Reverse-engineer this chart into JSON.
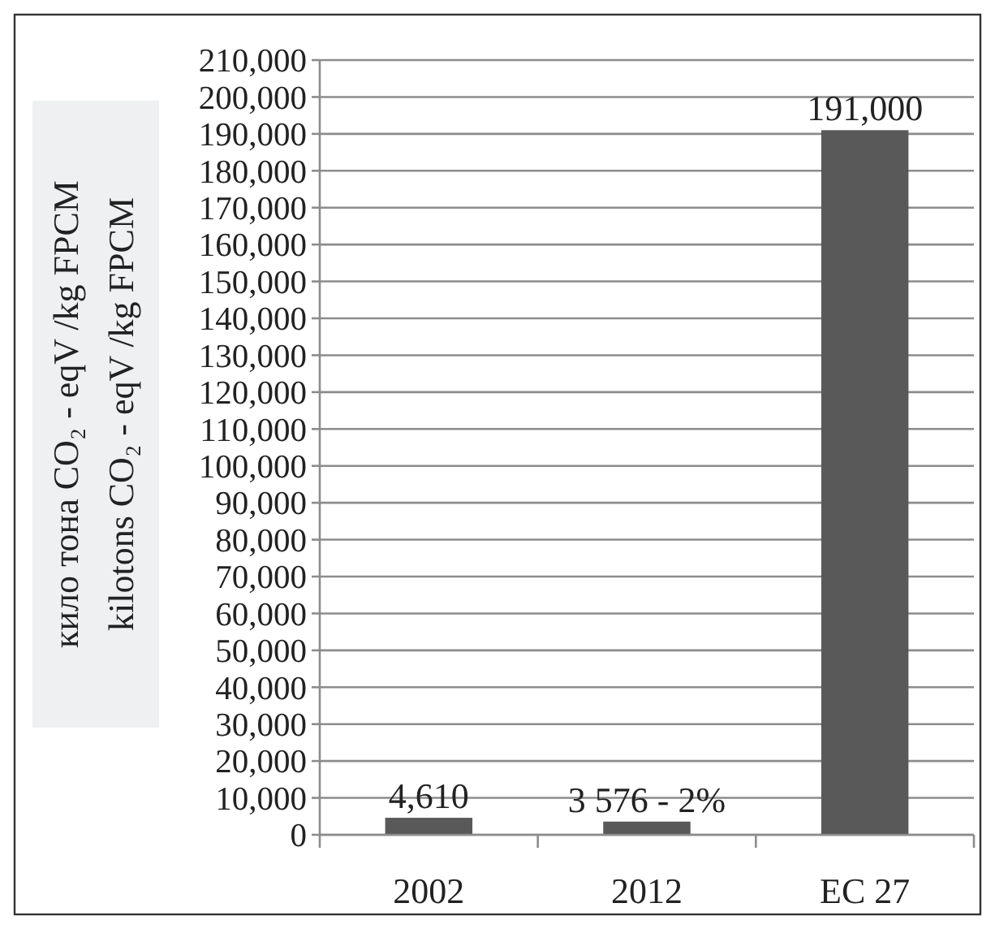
{
  "chart_data": {
    "type": "bar",
    "ylabel": "кило тона  CO₂ - eqV /kg FPCM\nkilotons  CO₂ - eqV /kg FPCM",
    "categories": [
      "2002",
      "2012",
      "EC 27"
    ],
    "values": [
      4610,
      3576,
      191000
    ],
    "value_labels": [
      "4,610",
      "3 576 - 2%",
      "191,000"
    ],
    "color": "#595959",
    "ylim": [
      0,
      210000
    ],
    "yticks": [
      {
        "value": 0,
        "label": "0"
      },
      {
        "value": 10000,
        "label": "10,000"
      },
      {
        "value": 20000,
        "label": "20,000"
      },
      {
        "value": 30000,
        "label": "30,000"
      },
      {
        "value": 40000,
        "label": "40,000"
      },
      {
        "value": 50000,
        "label": "50,000"
      },
      {
        "value": 60000,
        "label": "60,000"
      },
      {
        "value": 70000,
        "label": "70,000"
      },
      {
        "value": 80000,
        "label": "80,000"
      },
      {
        "value": 90000,
        "label": "90,000"
      },
      {
        "value": 100000,
        "label": "100,000"
      },
      {
        "value": 110000,
        "label": "110,000"
      },
      {
        "value": 120000,
        "label": "120,000"
      },
      {
        "value": 130000,
        "label": "130,000"
      },
      {
        "value": 140000,
        "label": "140,000"
      },
      {
        "value": 150000,
        "label": "150,000"
      },
      {
        "value": 160000,
        "label": "160,000"
      },
      {
        "value": 170000,
        "label": "170,000"
      },
      {
        "value": 180000,
        "label": "180,000"
      },
      {
        "value": 190000,
        "label": "190,000"
      },
      {
        "value": 200000,
        "label": "200,000"
      },
      {
        "value": 210000,
        "label": "210,000"
      }
    ],
    "grid": "y"
  }
}
